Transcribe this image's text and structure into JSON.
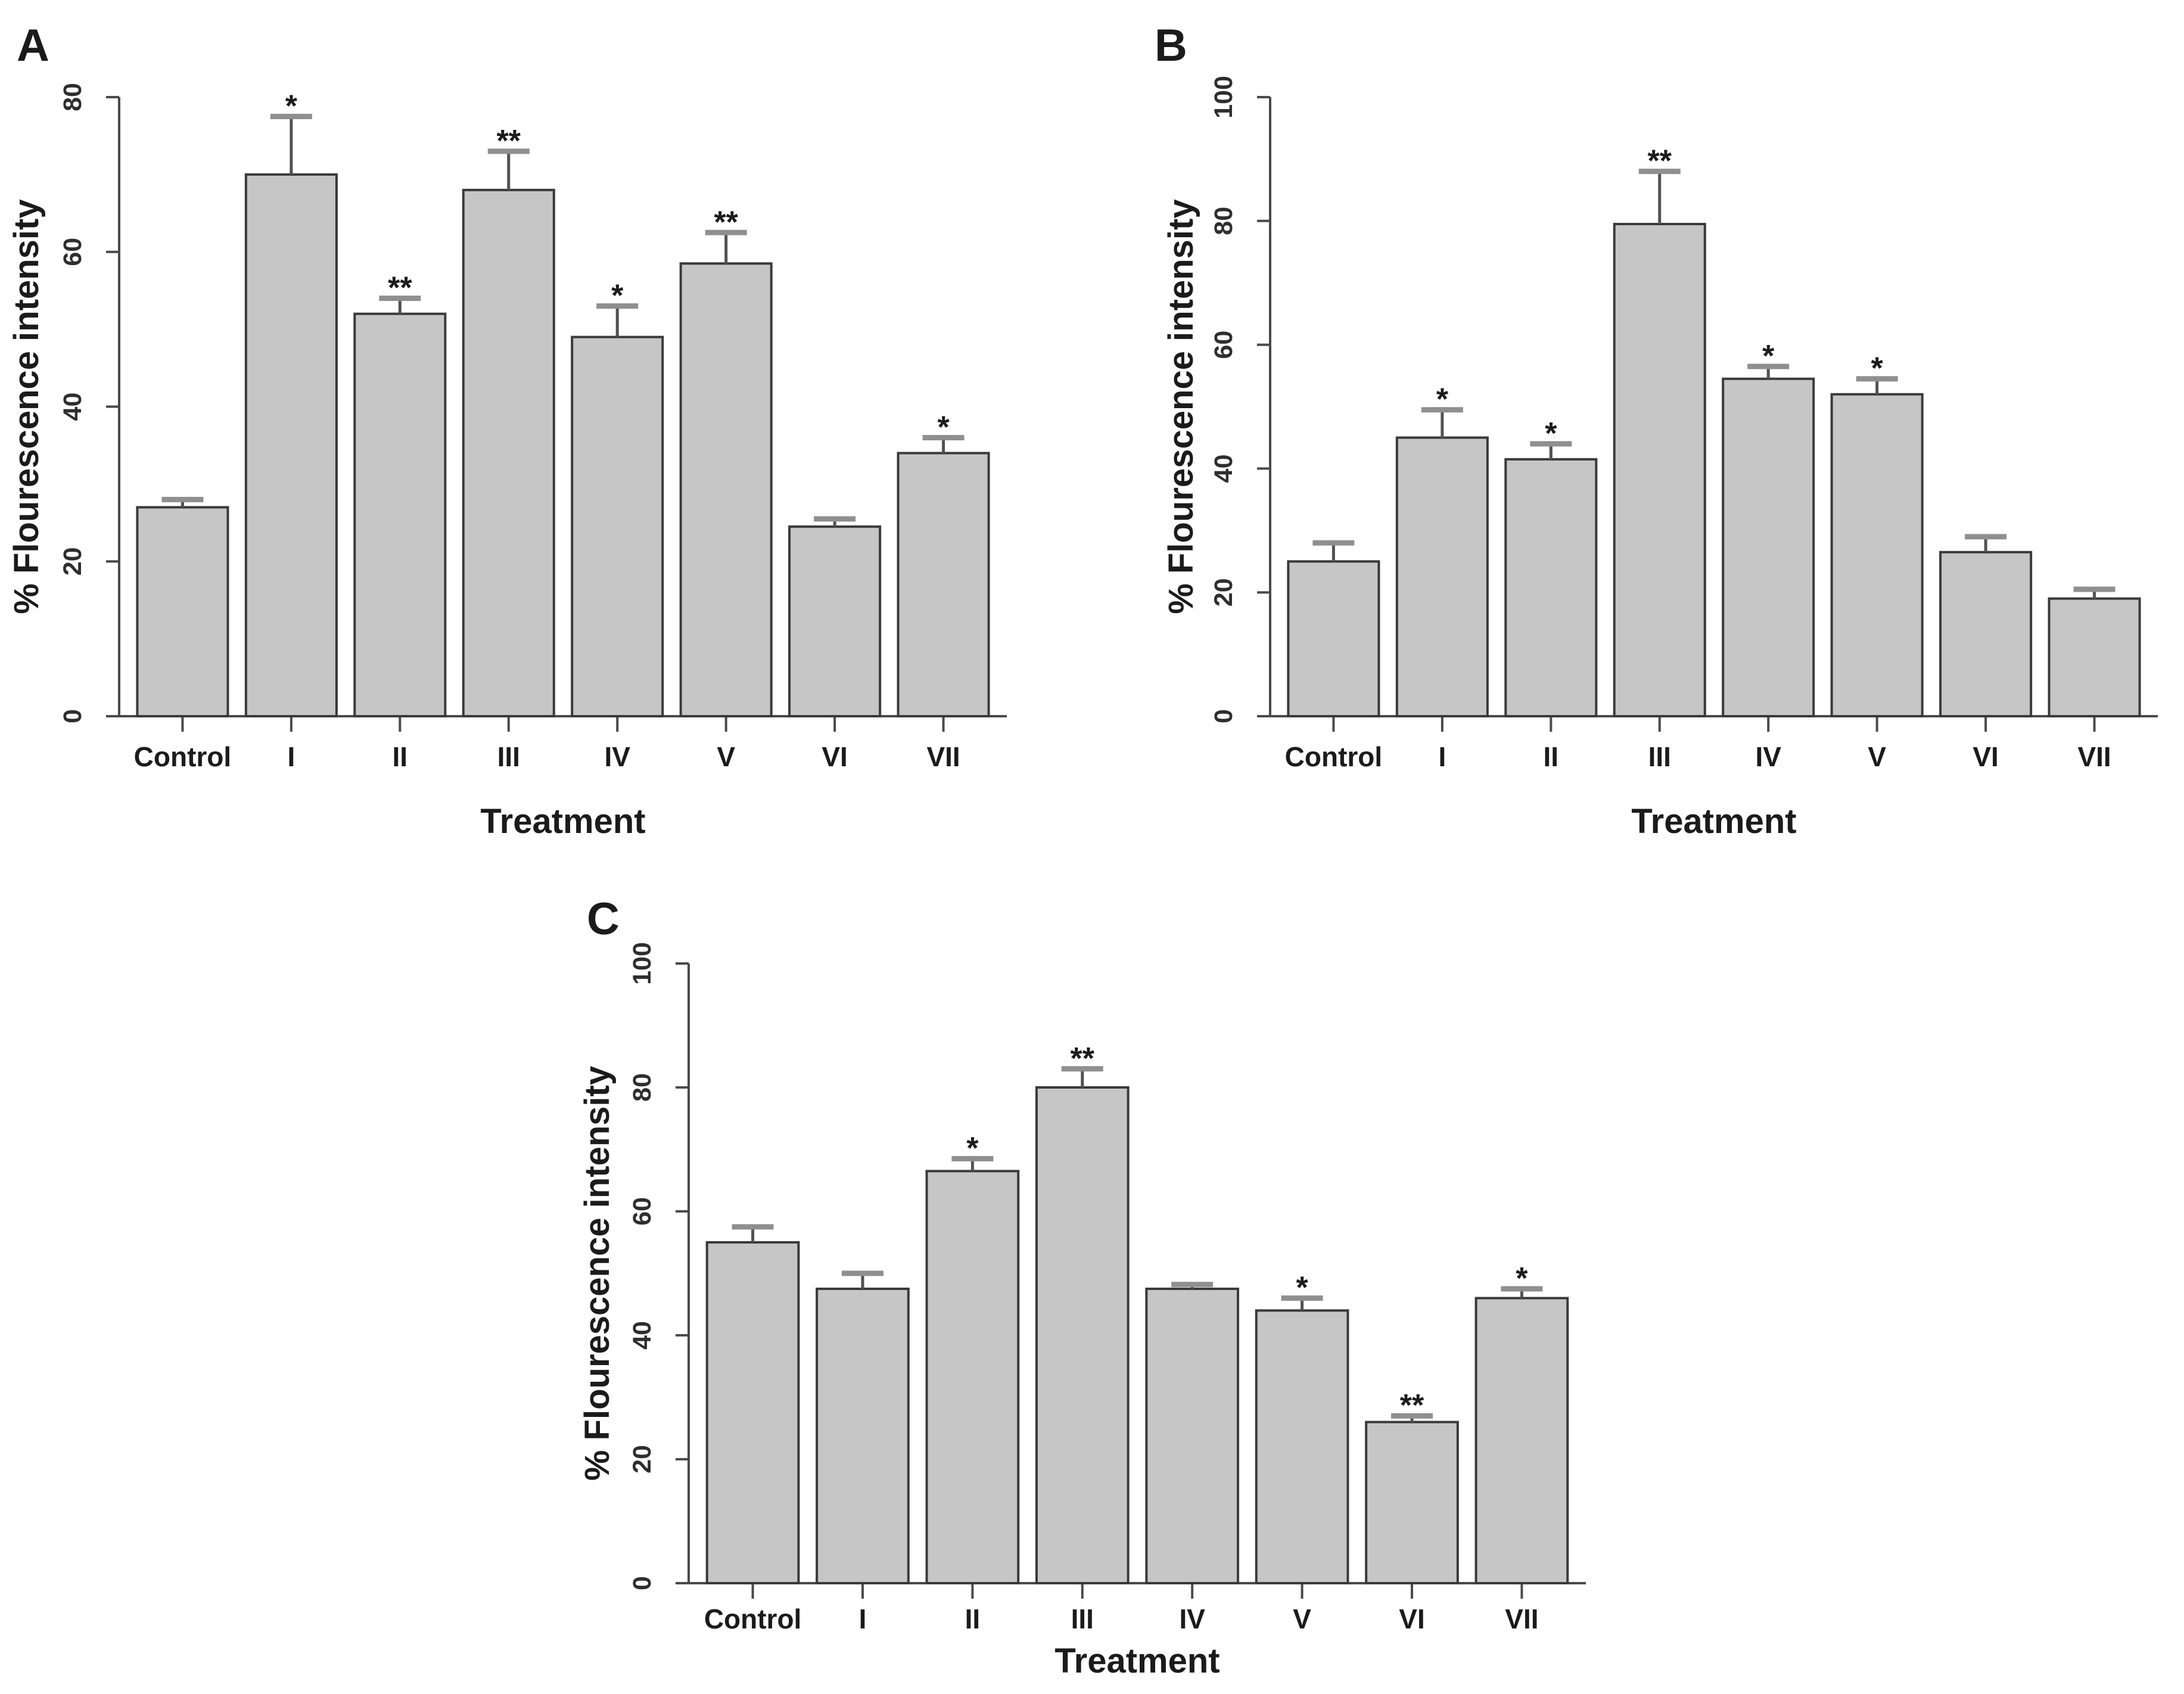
{
  "figure": {
    "background": "#ffffff",
    "panel_letters": [
      "A",
      "B",
      "C"
    ]
  },
  "colors": {
    "bar_fill": "#c6c6c6",
    "bar_stroke": "#3a3a3a",
    "axis": "#4a4a4a",
    "error_line": "#515151",
    "error_cap": "#8f8f8f",
    "text": "#1b1b1b",
    "tick_text": "#2e2e2e"
  },
  "chart_data": [
    {
      "panel": "A",
      "type": "bar",
      "title": "",
      "xlabel": "Treatment",
      "ylabel": "% Flourescence intensity",
      "categories": [
        "Control",
        "I",
        "II",
        "III",
        "IV",
        "V",
        "VI",
        "VII"
      ],
      "values": [
        27,
        70,
        52,
        68,
        49,
        58.5,
        24.5,
        34
      ],
      "errors": [
        1,
        7.5,
        2,
        5,
        4,
        4,
        1,
        2
      ],
      "significance": [
        "",
        "*",
        "**",
        "**",
        "*",
        "**",
        "",
        "*"
      ],
      "ylim": [
        0,
        80
      ],
      "yticks": [
        0,
        20,
        40,
        60,
        80
      ],
      "grid": "off",
      "legend": "none"
    },
    {
      "panel": "B",
      "type": "bar",
      "title": "",
      "xlabel": "Treatment",
      "ylabel": "% Flourescence intensity",
      "categories": [
        "Control",
        "I",
        "II",
        "III",
        "IV",
        "V",
        "VI",
        "VII"
      ],
      "values": [
        25,
        45,
        41.5,
        79.5,
        54.5,
        52,
        26.5,
        19
      ],
      "errors": [
        3,
        4.5,
        2.5,
        8.5,
        2,
        2.5,
        2.5,
        1.5
      ],
      "significance": [
        "",
        "*",
        "*",
        "**",
        "*",
        "*",
        "",
        ""
      ],
      "ylim": [
        0,
        100
      ],
      "yticks": [
        0,
        20,
        40,
        60,
        80,
        100
      ],
      "grid": "off",
      "legend": "none"
    },
    {
      "panel": "C",
      "type": "bar",
      "title": "",
      "xlabel": "Treatment",
      "ylabel": "% Flourescence intensity",
      "categories": [
        "Control",
        "I",
        "II",
        "III",
        "IV",
        "V",
        "VI",
        "VII"
      ],
      "values": [
        55,
        47.5,
        66.5,
        80,
        47.5,
        44,
        26,
        46
      ],
      "errors": [
        2.5,
        2.5,
        2,
        3,
        0.7,
        2,
        1,
        1.5
      ],
      "significance": [
        "",
        "",
        "*",
        "**",
        "",
        "*",
        "**",
        "*"
      ],
      "ylim": [
        0,
        100
      ],
      "yticks": [
        0,
        20,
        40,
        60,
        80,
        100
      ],
      "grid": "off",
      "legend": "none"
    }
  ]
}
